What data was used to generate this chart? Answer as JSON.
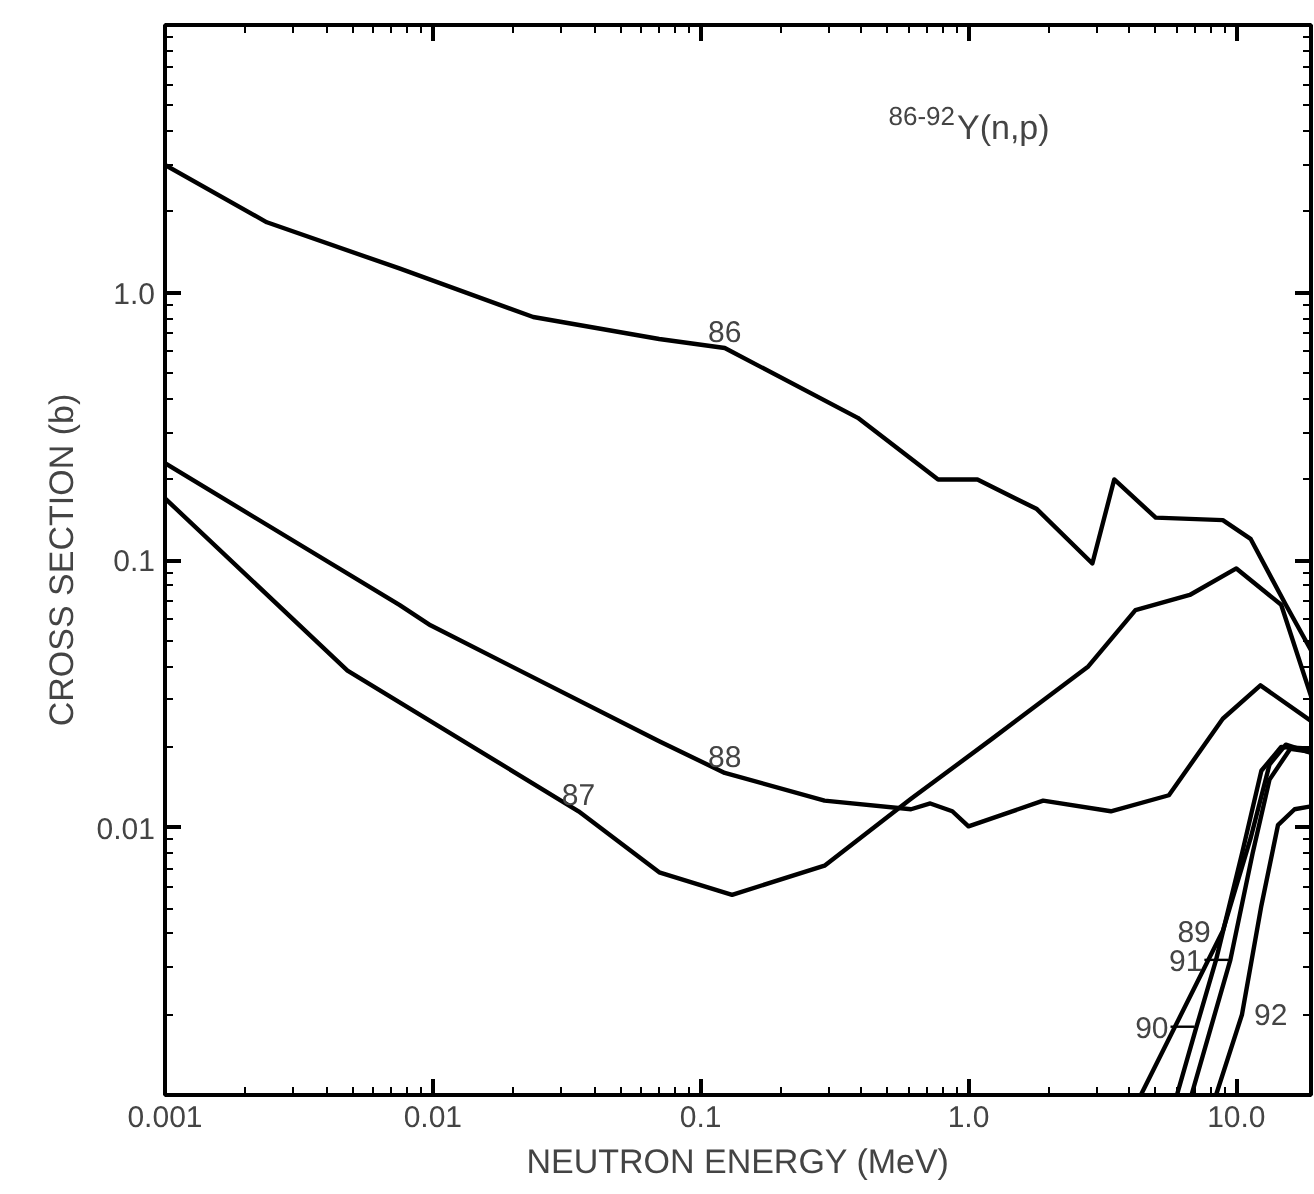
{
  "chart_data": {
    "type": "line",
    "xlabel": "NEUTRON ENERGY (MeV)",
    "ylabel": "CROSS SECTION (b)",
    "log": "xy",
    "grid": false,
    "marker": "none",
    "line_style": "solid",
    "xlim": [
      0.001,
      19
    ],
    "ylim": [
      0.001,
      10
    ],
    "xticks": [
      0.001,
      0.01,
      0.1,
      {
        "value": 1,
        "label": "1.0"
      },
      {
        "value": 10,
        "label": "10.0"
      }
    ],
    "yticks": [
      {
        "value": 0.001,
        "label": null
      },
      0.01,
      0.1,
      {
        "value": 1,
        "label": "1.0"
      },
      {
        "value": 10,
        "label": null
      }
    ],
    "series": [
      {
        "color": "#000000",
        "x": [
          0.001,
          0.0024,
          0.0075,
          0.0237,
          0.07,
          0.123,
          0.386,
          0.77,
          1.08,
          1.8,
          2.9,
          3.5,
          5.0,
          8.9,
          11.3,
          15.3,
          19
        ],
        "values": [
          3.0,
          1.83,
          1.23,
          0.81,
          0.67,
          0.62,
          0.34,
          0.2,
          0.2,
          0.155,
          0.097,
          0.2,
          0.144,
          0.141,
          0.12,
          0.068,
          0.046
        ]
      },
      {
        "color": "#000000",
        "x": [
          0.001,
          0.0048,
          0.035,
          0.07,
          0.131,
          0.29,
          0.61,
          1.22,
          2.8,
          4.2,
          6.7,
          10,
          14.7,
          19
        ],
        "values": [
          0.17,
          0.0386,
          0.0115,
          0.0068,
          0.0056,
          0.0072,
          0.0128,
          0.0214,
          0.04,
          0.065,
          0.074,
          0.093,
          0.068,
          0.031
        ]
      },
      {
        "color": "#000000",
        "x": [
          0.001,
          0.0075,
          0.0098,
          0.07,
          0.123,
          0.29,
          0.61,
          0.72,
          0.87,
          1.0,
          1.9,
          3.4,
          5.6,
          8.9,
          12.3,
          19
        ],
        "values": [
          0.23,
          0.068,
          0.057,
          0.021,
          0.016,
          0.0126,
          0.0117,
          0.0123,
          0.0115,
          0.0101,
          0.0126,
          0.0115,
          0.0132,
          0.0255,
          0.034,
          0.025
        ]
      },
      {
        "color": "#000000",
        "x": [
          4.4,
          8.9,
          11.3,
          13.3,
          15.3,
          19
        ],
        "values": [
          0.001,
          0.0041,
          0.0091,
          0.0172,
          0.0204,
          0.019
        ]
      },
      {
        "color": "#000000",
        "x": [
          6.0,
          7.1,
          8.4,
          10.5,
          12.4,
          14.7,
          19
        ],
        "values": [
          0.001,
          0.0018,
          0.0032,
          0.008,
          0.0163,
          0.02,
          0.0197
        ]
      },
      {
        "color": "#000000",
        "x": [
          6.8,
          9.5,
          11.5,
          13.3,
          15.9,
          19
        ],
        "values": [
          0.001,
          0.0032,
          0.008,
          0.0151,
          0.0197,
          0.0192
        ]
      },
      {
        "color": "#000000",
        "x": [
          8.4,
          10.5,
          12.4,
          14.3,
          16.5,
          19
        ],
        "values": [
          0.001,
          0.002,
          0.0051,
          0.0102,
          0.0117,
          0.012
        ]
      }
    ],
    "annotations": [
      "$^{86-92}$Y(n,p)",
      {
        "text": "86",
        "x": 0.123,
        "y": 0.62
      },
      {
        "text": "87",
        "x": 0.035,
        "y": 0.0115
      },
      {
        "text": "88",
        "x": 0.123,
        "y": 0.016
      },
      {
        "text": "89",
        "x": 8.9,
        "y": 0.0041
      },
      {
        "text": "90",
        "x": 7.1,
        "y": 0.0018
      },
      {
        "text": "92",
        "x": 10.5,
        "y": 0.002
      },
      {
        "text": "91",
        "x": 9.5,
        "y": 0.0032
      }
    ]
  }
}
